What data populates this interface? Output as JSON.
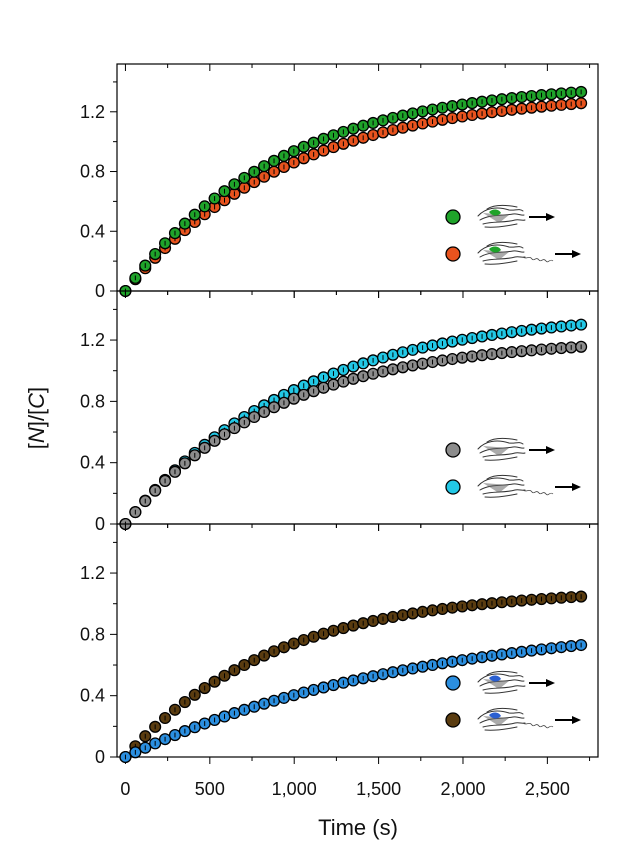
{
  "figure": {
    "xlabel": "Time (s)",
    "ylabel_parts": [
      "[",
      "N",
      "]/[",
      "C",
      "]"
    ]
  },
  "chart_data": [
    {
      "type": "scatter",
      "panel": "top",
      "xlim": [
        -50,
        2800
      ],
      "ylim": [
        0,
        1.52
      ],
      "xticks": [
        0,
        500,
        1000,
        1500,
        2000,
        2500
      ],
      "xtick_labels": [
        "0",
        "500",
        "1,000",
        "1,500",
        "2,000",
        "2,500"
      ],
      "yticks": [
        0,
        0.4,
        0.8,
        1.2
      ],
      "ytick_labels": [
        "0",
        "0.4",
        "0.8",
        "1.2"
      ],
      "legend_position": "bottom-right",
      "series": [
        {
          "name": "green construct",
          "color": "#1fa32a",
          "A": 1.405,
          "k": 0.0011,
          "t_start": 0,
          "t_end": 2700,
          "n": 47,
          "legend_icon": "protein-short-icon"
        },
        {
          "name": "orange construct (with tail)",
          "color": "#e8531e",
          "A": 1.34,
          "k": 0.00103,
          "t_start": 0,
          "t_end": 2700,
          "n": 47,
          "legend_icon": "protein-tail-icon"
        }
      ]
    },
    {
      "type": "scatter",
      "panel": "middle",
      "xlim": [
        -50,
        2800
      ],
      "ylim": [
        0,
        1.52
      ],
      "xticks": [
        0,
        500,
        1000,
        1500,
        2000,
        2500
      ],
      "xtick_labels": [
        "0",
        "500",
        "1,000",
        "1,500",
        "2,000",
        "2,500"
      ],
      "yticks": [
        0,
        0.4,
        0.8,
        1.2
      ],
      "ytick_labels": [
        "0",
        "0.4",
        "0.8",
        "1.2"
      ],
      "legend_position": "bottom-right",
      "series": [
        {
          "name": "grey construct",
          "color": "#8c8c8c",
          "A": 1.215,
          "k": 0.00112,
          "t_start": 0,
          "t_end": 2700,
          "n": 47,
          "legend_icon": "protein-short-icon"
        },
        {
          "name": "cyan construct (with tail)",
          "color": "#22c8e6",
          "A": 1.4,
          "k": 0.00098,
          "t_start": 0,
          "t_end": 2700,
          "n": 47,
          "legend_icon": "protein-tail-icon"
        }
      ]
    },
    {
      "type": "scatter",
      "panel": "bottom",
      "xlim": [
        -50,
        2800
      ],
      "ylim": [
        0,
        1.52
      ],
      "xticks": [
        0,
        500,
        1000,
        1500,
        2000,
        2500
      ],
      "xtick_labels": [
        "0",
        "500",
        "1,000",
        "1,500",
        "2,000",
        "2,500"
      ],
      "yticks": [
        0,
        0.4,
        0.8,
        1.2
      ],
      "ytick_labels": [
        "0",
        "0.4",
        "0.8",
        "1.2"
      ],
      "legend_position": "bottom-right",
      "series": [
        {
          "name": "blue construct",
          "color": "#2b8fe0",
          "A": 0.93,
          "k": 0.00057,
          "t_start": 0,
          "t_end": 2700,
          "n": 47,
          "legend_icon": "protein-short-icon"
        },
        {
          "name": "brown construct (with tail)",
          "color": "#5a3c10",
          "A": 1.1,
          "k": 0.00112,
          "t_start": 0,
          "t_end": 2700,
          "n": 47,
          "legend_icon": "protein-tail-icon"
        }
      ]
    }
  ]
}
